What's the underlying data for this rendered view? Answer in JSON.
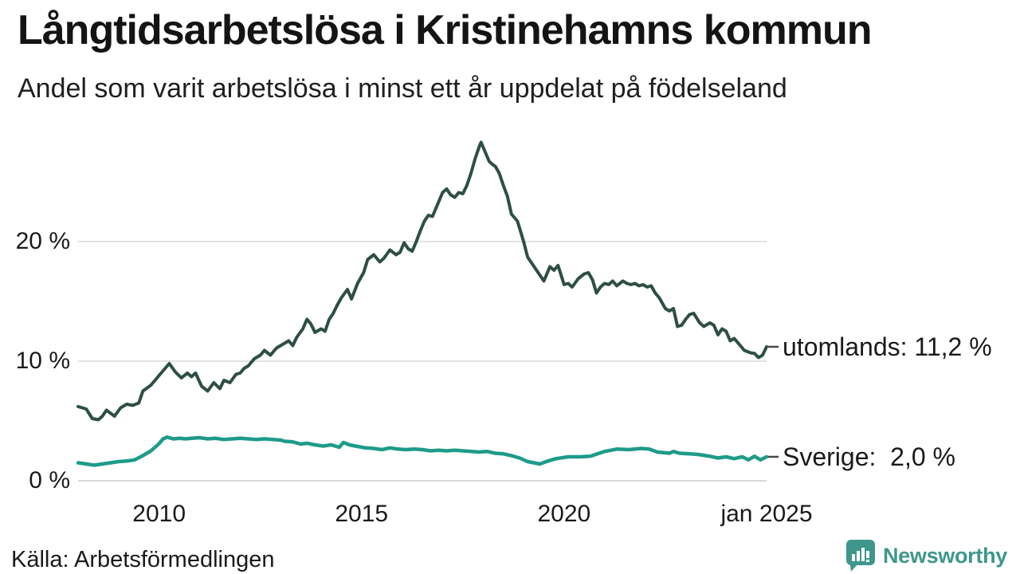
{
  "title": "Långtidsarbetslösa i Kristinehamns kommun",
  "subtitle": "Andel som varit arbetslösa i minst ett år uppdelat på födelseland",
  "source": "Källa: Arbetsförmedlingen",
  "branding": {
    "name": "Newsworthy",
    "color": "#3f978c",
    "icon": "bar-chart-speech-bubble-icon"
  },
  "chart_data": {
    "type": "line",
    "title": "Långtidsarbetslösa i Kristinehamns kommun",
    "subtitle": "Andel som varit arbetslösa i minst ett år uppdelat på födelseland",
    "xlabel": "",
    "ylabel": "",
    "grid": "horizontal",
    "grid_color": "#e2e2e2",
    "zero_line_color": "#d9d9d9",
    "legend_position": "right-end-labels",
    "x_axis": {
      "range": [
        2008.0,
        2025.0
      ],
      "ticks": [
        {
          "label": "2010",
          "year": 2010
        },
        {
          "label": "2015",
          "year": 2015
        },
        {
          "label": "2020",
          "year": 2020
        },
        {
          "label": "jan 2025",
          "year": 2025
        }
      ]
    },
    "y_axis": {
      "range": [
        0,
        29.5
      ],
      "unit": "%",
      "ticks": [
        {
          "label": "0 %",
          "value": 0
        },
        {
          "label": "10 %",
          "value": 10
        },
        {
          "label": "20 %",
          "value": 20
        }
      ]
    },
    "series": [
      {
        "name": "utomlands",
        "color": "#2d4f44",
        "width": 4,
        "end_value": 11.2,
        "end_label": "utomlands: 11,2 %",
        "points": [
          [
            2008.0,
            6.2
          ],
          [
            2008.2,
            6.0
          ],
          [
            2008.35,
            5.2
          ],
          [
            2008.5,
            5.1
          ],
          [
            2008.6,
            5.4
          ],
          [
            2008.7,
            5.9
          ],
          [
            2008.9,
            5.4
          ],
          [
            2009.05,
            6.1
          ],
          [
            2009.2,
            6.4
          ],
          [
            2009.35,
            6.3
          ],
          [
            2009.5,
            6.5
          ],
          [
            2009.6,
            7.5
          ],
          [
            2009.8,
            8.0
          ],
          [
            2010.0,
            8.8
          ],
          [
            2010.15,
            9.4
          ],
          [
            2010.25,
            9.8
          ],
          [
            2010.4,
            9.1
          ],
          [
            2010.55,
            8.6
          ],
          [
            2010.7,
            9.0
          ],
          [
            2010.8,
            8.7
          ],
          [
            2010.9,
            9.0
          ],
          [
            2011.05,
            7.9
          ],
          [
            2011.2,
            7.5
          ],
          [
            2011.35,
            8.2
          ],
          [
            2011.5,
            7.7
          ],
          [
            2011.6,
            8.4
          ],
          [
            2011.75,
            8.2
          ],
          [
            2011.9,
            8.9
          ],
          [
            2012.0,
            9.0
          ],
          [
            2012.1,
            9.4
          ],
          [
            2012.2,
            9.6
          ],
          [
            2012.35,
            10.2
          ],
          [
            2012.5,
            10.5
          ],
          [
            2012.6,
            10.9
          ],
          [
            2012.75,
            10.5
          ],
          [
            2012.9,
            11.1
          ],
          [
            2013.05,
            11.4
          ],
          [
            2013.2,
            11.7
          ],
          [
            2013.3,
            11.3
          ],
          [
            2013.4,
            12.0
          ],
          [
            2013.55,
            12.7
          ],
          [
            2013.65,
            13.5
          ],
          [
            2013.75,
            13.1
          ],
          [
            2013.85,
            12.4
          ],
          [
            2014.0,
            12.7
          ],
          [
            2014.1,
            12.5
          ],
          [
            2014.2,
            13.5
          ],
          [
            2014.3,
            14.0
          ],
          [
            2014.4,
            14.7
          ],
          [
            2014.5,
            15.3
          ],
          [
            2014.65,
            16.0
          ],
          [
            2014.75,
            15.2
          ],
          [
            2014.9,
            16.5
          ],
          [
            2015.05,
            17.4
          ],
          [
            2015.15,
            18.5
          ],
          [
            2015.3,
            18.9
          ],
          [
            2015.45,
            18.3
          ],
          [
            2015.55,
            18.6
          ],
          [
            2015.7,
            19.3
          ],
          [
            2015.85,
            18.9
          ],
          [
            2015.95,
            19.1
          ],
          [
            2016.05,
            19.9
          ],
          [
            2016.15,
            19.4
          ],
          [
            2016.25,
            19.2
          ],
          [
            2016.35,
            20.0
          ],
          [
            2016.45,
            20.9
          ],
          [
            2016.55,
            21.7
          ],
          [
            2016.65,
            22.2
          ],
          [
            2016.75,
            22.1
          ],
          [
            2016.85,
            22.9
          ],
          [
            2017.0,
            24.1
          ],
          [
            2017.1,
            24.4
          ],
          [
            2017.2,
            23.9
          ],
          [
            2017.3,
            23.7
          ],
          [
            2017.4,
            24.1
          ],
          [
            2017.5,
            24.0
          ],
          [
            2017.6,
            24.7
          ],
          [
            2017.7,
            25.7
          ],
          [
            2017.8,
            26.9
          ],
          [
            2017.9,
            27.9
          ],
          [
            2017.95,
            28.3
          ],
          [
            2018.05,
            27.5
          ],
          [
            2018.15,
            26.7
          ],
          [
            2018.25,
            26.4
          ],
          [
            2018.3,
            26.3
          ],
          [
            2018.4,
            25.7
          ],
          [
            2018.5,
            24.7
          ],
          [
            2018.6,
            23.8
          ],
          [
            2018.7,
            22.3
          ],
          [
            2018.85,
            21.7
          ],
          [
            2019.0,
            20.0
          ],
          [
            2019.1,
            18.7
          ],
          [
            2019.3,
            17.7
          ],
          [
            2019.5,
            16.7
          ],
          [
            2019.65,
            17.9
          ],
          [
            2019.75,
            17.6
          ],
          [
            2019.85,
            18.0
          ],
          [
            2020.0,
            16.4
          ],
          [
            2020.1,
            16.5
          ],
          [
            2020.2,
            16.2
          ],
          [
            2020.35,
            16.9
          ],
          [
            2020.5,
            17.3
          ],
          [
            2020.6,
            17.4
          ],
          [
            2020.7,
            16.8
          ],
          [
            2020.8,
            15.7
          ],
          [
            2020.9,
            16.2
          ],
          [
            2021.0,
            16.5
          ],
          [
            2021.1,
            16.4
          ],
          [
            2021.2,
            16.7
          ],
          [
            2021.3,
            16.3
          ],
          [
            2021.45,
            16.7
          ],
          [
            2021.55,
            16.5
          ],
          [
            2021.65,
            16.4
          ],
          [
            2021.75,
            16.5
          ],
          [
            2021.85,
            16.3
          ],
          [
            2021.95,
            16.4
          ],
          [
            2022.05,
            16.2
          ],
          [
            2022.15,
            16.3
          ],
          [
            2022.25,
            15.7
          ],
          [
            2022.35,
            15.3
          ],
          [
            2022.5,
            14.4
          ],
          [
            2022.6,
            14.2
          ],
          [
            2022.7,
            14.4
          ],
          [
            2022.8,
            12.9
          ],
          [
            2022.9,
            13.0
          ],
          [
            2023.0,
            13.5
          ],
          [
            2023.1,
            13.9
          ],
          [
            2023.2,
            14.0
          ],
          [
            2023.35,
            13.2
          ],
          [
            2023.45,
            12.9
          ],
          [
            2023.6,
            13.2
          ],
          [
            2023.7,
            13.0
          ],
          [
            2023.8,
            12.2
          ],
          [
            2023.9,
            12.7
          ],
          [
            2024.0,
            12.5
          ],
          [
            2024.1,
            11.7
          ],
          [
            2024.2,
            11.9
          ],
          [
            2024.35,
            11.3
          ],
          [
            2024.45,
            10.9
          ],
          [
            2024.6,
            10.7
          ],
          [
            2024.7,
            10.65
          ],
          [
            2024.8,
            10.3
          ],
          [
            2024.9,
            10.5
          ],
          [
            2025.0,
            11.2
          ]
        ]
      },
      {
        "name": "Sverige",
        "color": "#1e9b89",
        "width": 4.5,
        "end_value": 2.0,
        "end_label": "Sverige:  2,0 %",
        "points": [
          [
            2008.0,
            1.5
          ],
          [
            2008.2,
            1.4
          ],
          [
            2008.4,
            1.3
          ],
          [
            2008.6,
            1.4
          ],
          [
            2008.8,
            1.5
          ],
          [
            2009.0,
            1.6
          ],
          [
            2009.2,
            1.65
          ],
          [
            2009.4,
            1.75
          ],
          [
            2009.6,
            2.1
          ],
          [
            2009.8,
            2.5
          ],
          [
            2010.0,
            3.1
          ],
          [
            2010.1,
            3.5
          ],
          [
            2010.2,
            3.65
          ],
          [
            2010.35,
            3.5
          ],
          [
            2010.5,
            3.55
          ],
          [
            2010.65,
            3.5
          ],
          [
            2010.8,
            3.55
          ],
          [
            2011.0,
            3.6
          ],
          [
            2011.2,
            3.5
          ],
          [
            2011.4,
            3.55
          ],
          [
            2011.6,
            3.45
          ],
          [
            2011.8,
            3.5
          ],
          [
            2012.0,
            3.55
          ],
          [
            2012.2,
            3.5
          ],
          [
            2012.4,
            3.45
          ],
          [
            2012.6,
            3.5
          ],
          [
            2012.8,
            3.45
          ],
          [
            2013.0,
            3.4
          ],
          [
            2013.1,
            3.3
          ],
          [
            2013.3,
            3.25
          ],
          [
            2013.5,
            3.07
          ],
          [
            2013.65,
            3.13
          ],
          [
            2013.85,
            3.0
          ],
          [
            2014.05,
            2.9
          ],
          [
            2014.25,
            3.0
          ],
          [
            2014.45,
            2.8
          ],
          [
            2014.55,
            3.2
          ],
          [
            2014.7,
            3.0
          ],
          [
            2014.9,
            2.87
          ],
          [
            2015.1,
            2.75
          ],
          [
            2015.3,
            2.7
          ],
          [
            2015.5,
            2.6
          ],
          [
            2015.7,
            2.75
          ],
          [
            2015.9,
            2.65
          ],
          [
            2016.1,
            2.6
          ],
          [
            2016.3,
            2.65
          ],
          [
            2016.5,
            2.6
          ],
          [
            2016.7,
            2.5
          ],
          [
            2016.9,
            2.55
          ],
          [
            2017.1,
            2.5
          ],
          [
            2017.3,
            2.55
          ],
          [
            2017.5,
            2.5
          ],
          [
            2017.7,
            2.45
          ],
          [
            2017.9,
            2.4
          ],
          [
            2018.1,
            2.45
          ],
          [
            2018.3,
            2.3
          ],
          [
            2018.5,
            2.25
          ],
          [
            2018.7,
            2.1
          ],
          [
            2018.9,
            1.9
          ],
          [
            2019.1,
            1.6
          ],
          [
            2019.4,
            1.4
          ],
          [
            2019.6,
            1.65
          ],
          [
            2019.8,
            1.85
          ],
          [
            2020.1,
            2.0
          ],
          [
            2020.4,
            2.0
          ],
          [
            2020.65,
            2.05
          ],
          [
            2021.0,
            2.45
          ],
          [
            2021.3,
            2.65
          ],
          [
            2021.6,
            2.6
          ],
          [
            2021.9,
            2.7
          ],
          [
            2022.1,
            2.65
          ],
          [
            2022.3,
            2.4
          ],
          [
            2022.6,
            2.3
          ],
          [
            2022.7,
            2.45
          ],
          [
            2022.85,
            2.3
          ],
          [
            2023.1,
            2.25
          ],
          [
            2023.3,
            2.2
          ],
          [
            2023.6,
            2.05
          ],
          [
            2023.8,
            1.9
          ],
          [
            2024.0,
            2.0
          ],
          [
            2024.2,
            1.85
          ],
          [
            2024.4,
            2.0
          ],
          [
            2024.55,
            1.75
          ],
          [
            2024.7,
            2.05
          ],
          [
            2024.85,
            1.75
          ],
          [
            2025.0,
            2.0
          ]
        ]
      }
    ]
  }
}
